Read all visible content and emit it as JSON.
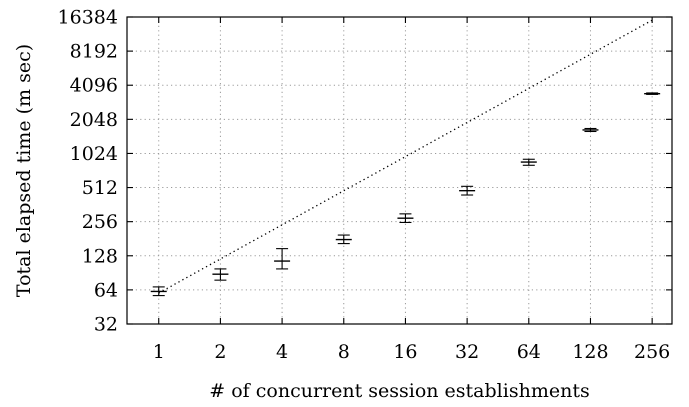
{
  "chart_data": {
    "type": "scatter",
    "title": "",
    "xlabel": "# of concurrent session establishments",
    "ylabel": "Total elapsed time (m sec)",
    "x_scale": "log2",
    "y_scale": "log2",
    "x_ticks": [
      1,
      2,
      4,
      8,
      16,
      32,
      64,
      128,
      256
    ],
    "y_ticks": [
      32,
      64,
      128,
      256,
      512,
      1024,
      2048,
      4096,
      8192,
      16384
    ],
    "xlim": [
      0.7,
      320
    ],
    "ylim": [
      32,
      16384
    ],
    "grid": true,
    "series": [
      {
        "marker": "plus",
        "error_bars": true,
        "points": [
          {
            "x": 1,
            "y": 62,
            "ylo": 57,
            "yhi": 68
          },
          {
            "x": 2,
            "y": 88,
            "ylo": 78,
            "yhi": 98
          },
          {
            "x": 4,
            "y": 115,
            "ylo": 98,
            "yhi": 148
          },
          {
            "x": 8,
            "y": 178,
            "ylo": 164,
            "yhi": 195
          },
          {
            "x": 16,
            "y": 275,
            "ylo": 252,
            "yhi": 300
          },
          {
            "x": 32,
            "y": 480,
            "ylo": 440,
            "yhi": 525
          },
          {
            "x": 64,
            "y": 860,
            "ylo": 805,
            "yhi": 910
          },
          {
            "x": 128,
            "y": 1650,
            "ylo": 1600,
            "yhi": 1700
          },
          {
            "x": 256,
            "y": 3450,
            "ylo": 3400,
            "yhi": 3500
          }
        ]
      },
      {
        "style": "dotted",
        "points": [
          {
            "x": 1,
            "y": 60
          },
          {
            "x": 256,
            "y": 15360
          }
        ]
      }
    ]
  }
}
